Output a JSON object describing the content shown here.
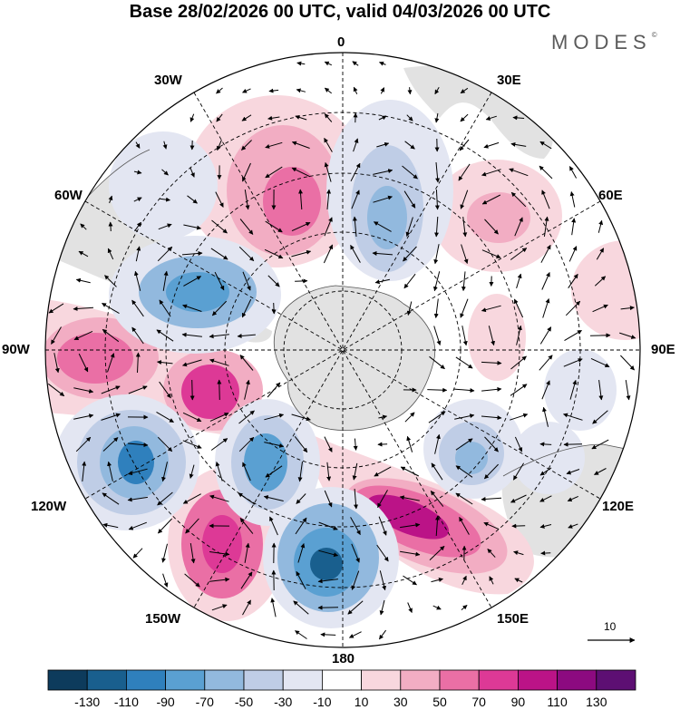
{
  "title": "Base 28/02/2026 00 UTC, valid 04/03/2026 00 UTC",
  "brand": "MODES",
  "brand_mark": "©",
  "longitude_labels": {
    "north": "0",
    "deg30w": "30W",
    "deg30e": "30E",
    "deg60w": "60W",
    "deg60e": "60E",
    "deg90w": "90W",
    "deg90e": "90E",
    "deg120w": "120W",
    "deg120e": "120E",
    "deg150w": "150W",
    "deg150e": "150E",
    "south": "180"
  },
  "vector_scale": {
    "value": "10",
    "icon": "reference-arrow-icon"
  },
  "colorbar": {
    "tick_labels": [
      "-130",
      "-110",
      "-90",
      "-70",
      "-50",
      "-30",
      "-10",
      "10",
      "30",
      "50",
      "70",
      "90",
      "110",
      "130"
    ],
    "colors": [
      "#0d3b5c",
      "#195f8e",
      "#2f80bd",
      "#5aa0d2",
      "#92b9de",
      "#bfcde6",
      "#e3e6f2",
      "#ffffff",
      "#f8d7de",
      "#f2adc3",
      "#ea6fa5",
      "#dd3996",
      "#bb1387",
      "#8c0a80",
      "#5d0f73"
    ]
  },
  "anomaly_colors": {
    "neg_1": "#e3e6f2",
    "neg_2": "#bfcde6",
    "neg_3": "#92b9de",
    "neg_4": "#5aa0d2",
    "neg_5": "#2f80bd",
    "neg_6": "#195f8e",
    "pos_1": "#f8d7de",
    "pos_2": "#f2adc3",
    "pos_3": "#ea6fa5",
    "pos_4": "#dd3996",
    "pos_5": "#bb1387",
    "pos_6": "#8c0a80",
    "land": "#e2e2e2"
  }
}
